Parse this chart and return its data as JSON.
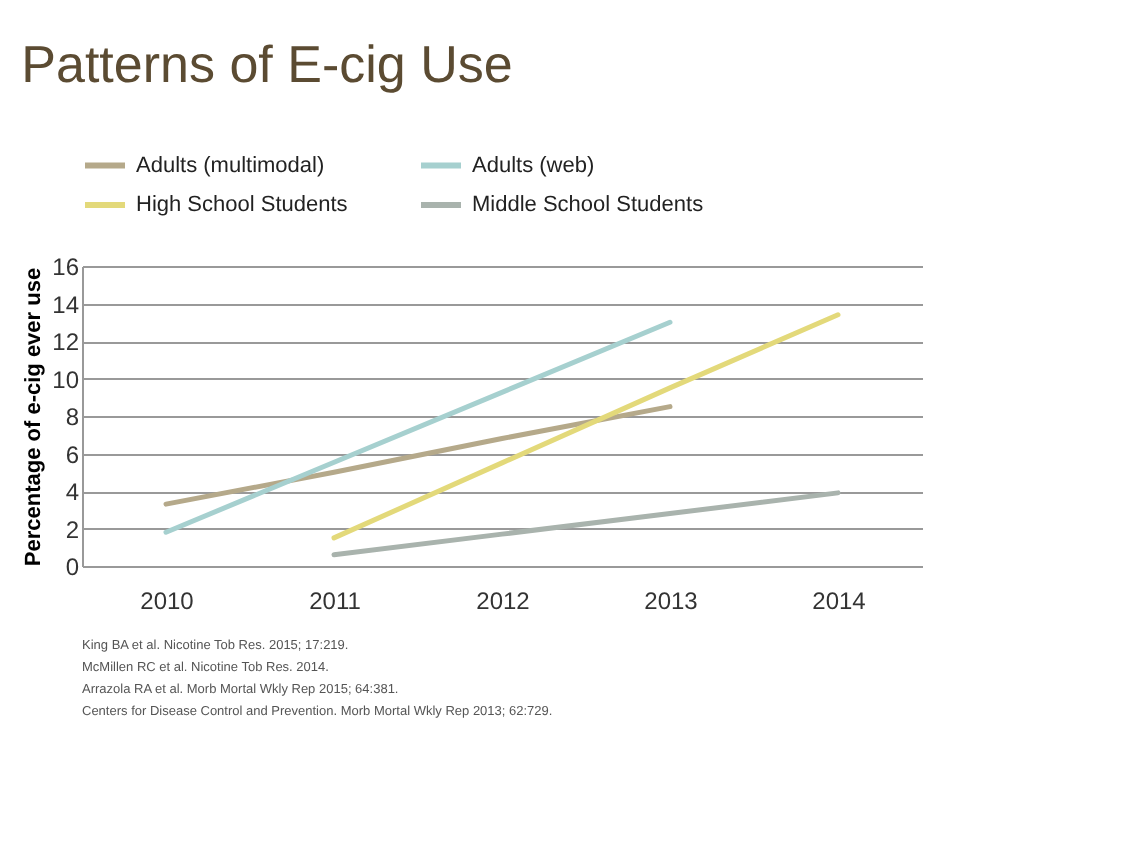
{
  "chart_data": {
    "type": "line",
    "title": "Patterns of E-cig Use",
    "ylabel": "Percentage of e-cig ever use",
    "categories": [
      "2010",
      "2011",
      "2012",
      "2013",
      "2014"
    ],
    "series": [
      {
        "name": "Adults (multimodal)",
        "color": "#b5a98a",
        "values": [
          3.3,
          5.0,
          6.8,
          8.5,
          null
        ]
      },
      {
        "name": "Adults (web)",
        "color": "#a6d0cf",
        "values": [
          1.8,
          null,
          null,
          13.0,
          null
        ]
      },
      {
        "name": "High School Students",
        "color": "#e3d97a",
        "values": [
          null,
          1.5,
          5.5,
          9.5,
          13.4
        ]
      },
      {
        "name": "Middle School Students",
        "color": "#a9b3ad",
        "values": [
          null,
          0.6,
          1.7,
          2.8,
          3.9
        ]
      }
    ],
    "ylim": [
      0,
      16
    ],
    "yticks": [
      0,
      2,
      4,
      6,
      8,
      10,
      12,
      14,
      16
    ],
    "grid": "y",
    "legend": "top",
    "marker": "none",
    "line_style": "solid",
    "annotations": [
      "King BA et al. Nicotine Tob Res. 2015; 17:219.",
      "McMillen RC et al. Nicotine Tob Res. 2014.",
      "Arrazola RA et al. Morb Mortal Wkly Rep 2015; 64:381.",
      "Centers for Disease Control and Prevention. Morb Mortal Wkly Rep 2013; 62:729."
    ]
  }
}
